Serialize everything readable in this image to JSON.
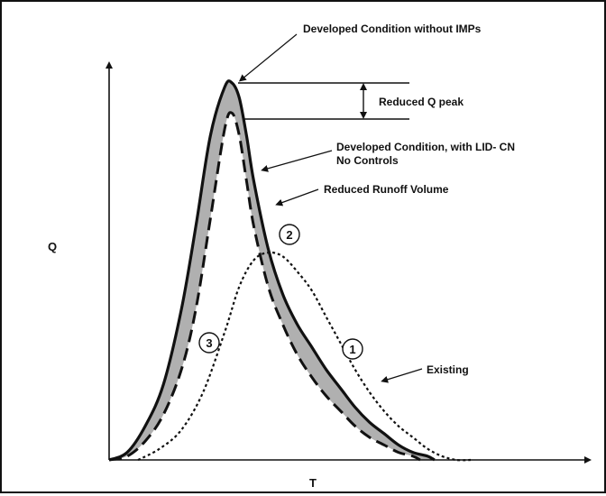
{
  "chart_data": {
    "type": "line",
    "title": "",
    "xlabel": "T",
    "ylabel": "Q",
    "xlim": [
      0,
      100
    ],
    "ylim": [
      0,
      100
    ],
    "grid": false,
    "legend": "none",
    "series": [
      {
        "name": "Developed Condition without IMPs",
        "style": "solid",
        "color": "#111111",
        "x": [
          0,
          5,
          10,
          15,
          20,
          24,
          28,
          32,
          34,
          36,
          38,
          40,
          44,
          48,
          52,
          56,
          60,
          64,
          68,
          72,
          76,
          80,
          84,
          88,
          90
        ],
        "y": [
          0,
          2,
          9,
          20,
          40,
          62,
          86,
          99,
          100,
          96,
          86,
          74,
          56,
          44,
          36,
          30,
          24,
          19,
          14,
          10,
          7,
          4,
          2,
          1,
          0
        ]
      },
      {
        "name": "Developed Condition, with LID- CN No Controls",
        "style": "dashed",
        "color": "#111111",
        "x": [
          0,
          5,
          10,
          15,
          20,
          24,
          28,
          32,
          34,
          36,
          38,
          40,
          44,
          48,
          52,
          56,
          60,
          64,
          68,
          72,
          76,
          80,
          84,
          86
        ],
        "y": [
          0,
          1,
          5,
          12,
          24,
          40,
          64,
          88,
          92,
          86,
          74,
          62,
          46,
          36,
          28,
          22,
          17,
          13,
          9,
          6,
          4,
          2,
          1,
          0
        ]
      },
      {
        "name": "Existing",
        "style": "dotted",
        "color": "#111111",
        "x": [
          8,
          14,
          20,
          26,
          32,
          36,
          40,
          44,
          48,
          52,
          56,
          60,
          64,
          68,
          72,
          76,
          80,
          84,
          88,
          92,
          96,
          100
        ],
        "y": [
          0,
          3,
          8,
          18,
          34,
          46,
          53,
          55,
          54,
          50,
          45,
          38,
          31,
          24,
          18,
          13,
          9,
          6,
          3,
          1,
          0,
          0
        ]
      }
    ],
    "shaded_region": {
      "between": [
        "Developed Condition without IMPs",
        "Developed Condition, with LID- CN No Controls"
      ],
      "label": "Reduced Runoff Volume",
      "color": "#b0b0b0"
    },
    "annotations": [
      {
        "id": "dev_without_imps",
        "text": "Developed Condition without IMPs"
      },
      {
        "id": "reduced_q_peak",
        "text": "Reduced Q  peak"
      },
      {
        "id": "dev_with_lid_line1",
        "text": "Developed Condition, with LID- CN"
      },
      {
        "id": "dev_with_lid_line2",
        "text": "No Controls"
      },
      {
        "id": "reduced_runoff",
        "text": "Reduced Runoff  Volume"
      },
      {
        "id": "existing",
        "text": "Existing"
      }
    ],
    "markers": [
      {
        "id": "marker-1",
        "label": "1",
        "x": 60,
        "y": 26
      },
      {
        "id": "marker-2",
        "label": "2",
        "x": 45,
        "y": 56
      },
      {
        "id": "marker-3",
        "label": "3",
        "x": 23,
        "y": 38
      }
    ]
  }
}
